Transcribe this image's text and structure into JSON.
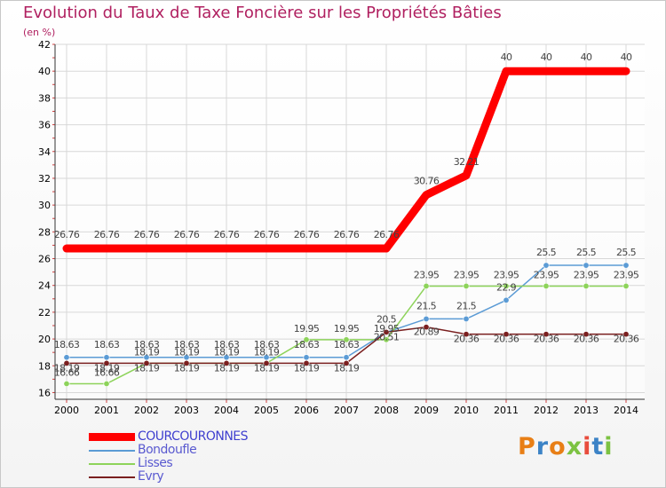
{
  "title": "Evolution du Taux de Taxe Foncière sur les Propriétés Bâties",
  "unit": "(en %)",
  "logo": {
    "letters": [
      "P",
      "r",
      "o",
      "x",
      "i",
      "t",
      "i"
    ],
    "colors": [
      "#e87f16",
      "#3c83c6",
      "#e87f16",
      "#7cc242",
      "#e84c3d",
      "#3c83c6",
      "#7cc242"
    ]
  },
  "chart_data": {
    "type": "line",
    "title": "Evolution du Taux de Taxe Foncière sur les Propriétés Bâties",
    "ylabel": "(en %)",
    "ylim": [
      15.5,
      42
    ],
    "yticks": [
      16,
      18,
      20,
      22,
      24,
      26,
      28,
      30,
      32,
      34,
      36,
      38,
      40,
      42
    ],
    "categories": [
      "2000",
      "2001",
      "2002",
      "2003",
      "2004",
      "2005",
      "2006",
      "2007",
      "2008",
      "2009",
      "2010",
      "2011",
      "2012",
      "2013",
      "2014"
    ],
    "series": [
      {
        "name": "COURCOURONNES",
        "color": "#ff0000",
        "values": [
          26.76,
          26.76,
          26.76,
          26.76,
          26.76,
          26.76,
          26.76,
          26.76,
          26.76,
          30.76,
          32.21,
          40,
          40,
          40,
          40
        ],
        "labels": [
          "26.76",
          "26.76",
          "26.76",
          "26.76",
          "26.76",
          "26.76",
          "26.76",
          "26.76",
          "26.76",
          "30.76",
          "32.21",
          "40",
          "40",
          "40",
          "40"
        ]
      },
      {
        "name": "Bondoufle",
        "color": "#5b9bd5",
        "values": [
          18.63,
          18.63,
          18.63,
          18.63,
          18.63,
          18.63,
          18.63,
          18.63,
          20.5,
          21.5,
          21.5,
          22.9,
          25.5,
          25.5,
          25.5
        ],
        "labels": [
          "18.63",
          "18.63",
          "18.63",
          "18.63",
          "18.63",
          "18.63",
          "18.63",
          "18.63",
          "20.5",
          "21.5",
          "21.5",
          "22.9",
          "25.5",
          "25.5",
          "25.5"
        ]
      },
      {
        "name": "Lisses",
        "color": "#8dd35a",
        "values": [
          16.66,
          16.66,
          18.19,
          18.19,
          18.19,
          18.19,
          19.95,
          19.95,
          19.95,
          23.95,
          23.95,
          23.95,
          23.95,
          23.95,
          23.95
        ],
        "labels": [
          "16.66",
          "16.66",
          "18.19",
          "18.19",
          "18.19",
          "18.19",
          "19.95",
          "19.95",
          "19.95",
          "23.95",
          "23.95",
          "23.95",
          "23.95",
          "23.95",
          "23.95"
        ]
      },
      {
        "name": "Evry",
        "color": "#7a1f1f",
        "values": [
          18.19,
          18.19,
          18.19,
          18.19,
          18.19,
          18.19,
          18.19,
          18.19,
          20.51,
          20.89,
          20.36,
          20.36,
          20.36,
          20.36,
          20.36
        ],
        "labels": [
          "18.19",
          "18.19",
          "18.19",
          "18.19",
          "18.19",
          "18.19",
          "18.19",
          "18.19",
          "20.51",
          "20.89",
          "20.36",
          "20.36",
          "20.36",
          "20.36",
          "20.36"
        ]
      }
    ],
    "legend": "bottom-left"
  }
}
